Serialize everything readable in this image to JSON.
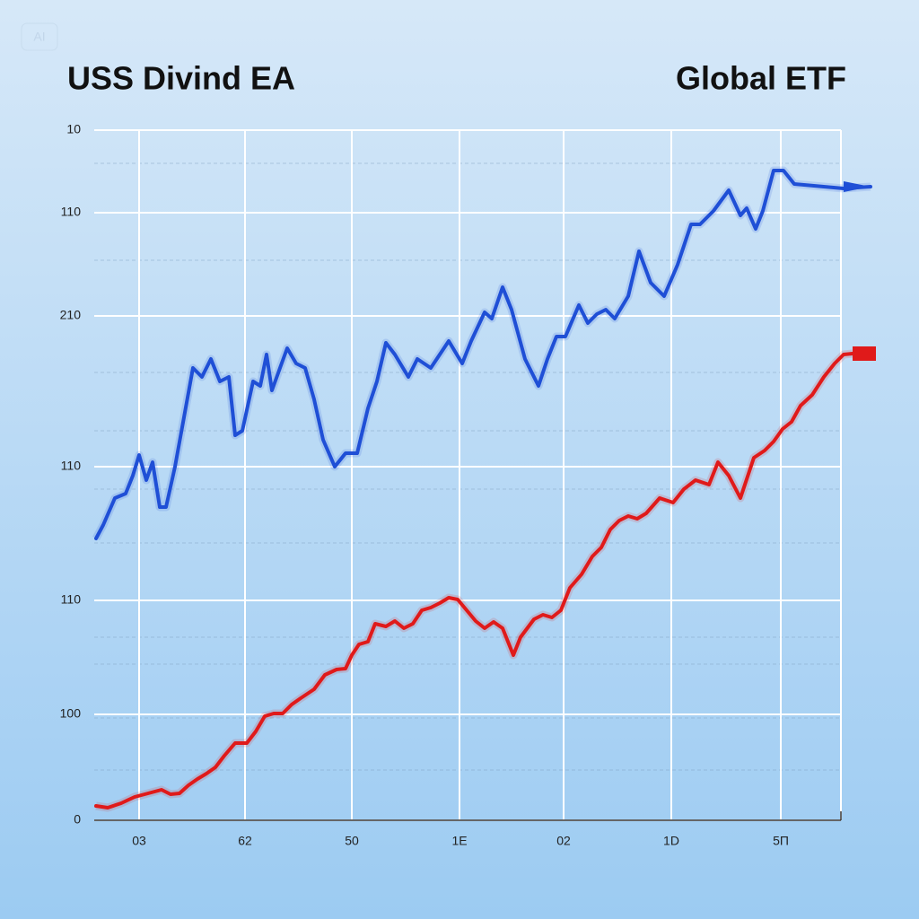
{
  "chart_data": {
    "type": "line",
    "watermark": "AI",
    "xlim": [
      0,
      832
    ],
    "ylim": [
      0,
      769
    ],
    "xticks": [
      {
        "value": 50,
        "label": "03"
      },
      {
        "value": 168,
        "label": "62"
      },
      {
        "value": 287,
        "label": "50"
      },
      {
        "value": 407,
        "label": "1E"
      },
      {
        "value": 523,
        "label": "02"
      },
      {
        "value": 643,
        "label": "1D"
      },
      {
        "value": 765,
        "label": "5П"
      }
    ],
    "yticks": [
      {
        "value": 769,
        "label": "10"
      },
      {
        "value": 677,
        "label": "110"
      },
      {
        "value": 562,
        "label": "210"
      },
      {
        "value": 394,
        "label": "110"
      },
      {
        "value": 245,
        "label": "110"
      },
      {
        "value": 118,
        "label": "100"
      },
      0
    ],
    "grid": true,
    "series": [
      {
        "name": "USS Divind EA",
        "color": "#1f4fd6",
        "x": [
          2,
          10,
          23,
          35,
          43,
          50,
          58,
          65,
          73,
          80,
          90,
          100,
          110,
          120,
          130,
          140,
          150,
          157,
          165,
          177,
          185,
          192,
          198,
          207,
          215,
          225,
          235,
          245,
          255,
          268,
          280,
          293,
          305,
          315,
          325,
          335,
          350,
          360,
          375,
          395,
          410,
          420,
          435,
          443,
          455,
          465,
          480,
          495,
          505,
          515,
          525,
          540,
          550,
          560,
          570,
          580,
          595,
          607,
          620,
          635,
          650,
          665,
          675,
          690,
          707,
          720,
          727,
          737,
          745,
          757,
          768,
          780,
          835,
          865
        ],
        "values": [
          314,
          329,
          359,
          364,
          384,
          407,
          379,
          399,
          349,
          349,
          394,
          449,
          504,
          494,
          514,
          489,
          494,
          429,
          434,
          489,
          484,
          519,
          479,
          504,
          526,
          509,
          504,
          469,
          424,
          394,
          409,
          409,
          459,
          489,
          532,
          519,
          494,
          514,
          504,
          534,
          509,
          534,
          566,
          559,
          594,
          569,
          514,
          484,
          514,
          539,
          539,
          574,
          554,
          564,
          569,
          559,
          584,
          634,
          599,
          584,
          619,
          664,
          664,
          679,
          702,
          674,
          682,
          659,
          679,
          724,
          724,
          709,
          704,
          706
        ]
      },
      {
        "name": "Global ETF",
        "color": "#e01a1a",
        "x": [
          2,
          15,
          30,
          45,
          60,
          75,
          85,
          95,
          105,
          115,
          125,
          135,
          145,
          157,
          170,
          180,
          190,
          200,
          210,
          220,
          230,
          245,
          257,
          270,
          280,
          287,
          295,
          305,
          313,
          325,
          335,
          345,
          355,
          365,
          375,
          385,
          395,
          405,
          415,
          425,
          435,
          445,
          455,
          467,
          475,
          490,
          500,
          510,
          520,
          530,
          543,
          555,
          565,
          575,
          585,
          595,
          605,
          615,
          630,
          645,
          657,
          670,
          685,
          695,
          707,
          720,
          735,
          747,
          757,
          767,
          777,
          787,
          800,
          813,
          825,
          835,
          845
        ],
        "values": [
          16,
          14,
          19,
          26,
          30,
          34,
          29,
          30,
          39,
          46,
          52,
          59,
          72,
          86,
          86,
          99,
          116,
          119,
          119,
          129,
          136,
          146,
          162,
          168,
          169,
          184,
          196,
          199,
          219,
          216,
          222,
          214,
          219,
          234,
          237,
          242,
          248,
          246,
          234,
          222,
          214,
          221,
          214,
          184,
          204,
          224,
          229,
          226,
          234,
          259,
          274,
          294,
          304,
          324,
          334,
          339,
          336,
          342,
          359,
          354,
          369,
          379,
          374,
          399,
          384,
          359,
          404,
          412,
          422,
          436,
          444,
          462,
          474,
          494,
          509,
          519,
          520
        ]
      }
    ]
  }
}
